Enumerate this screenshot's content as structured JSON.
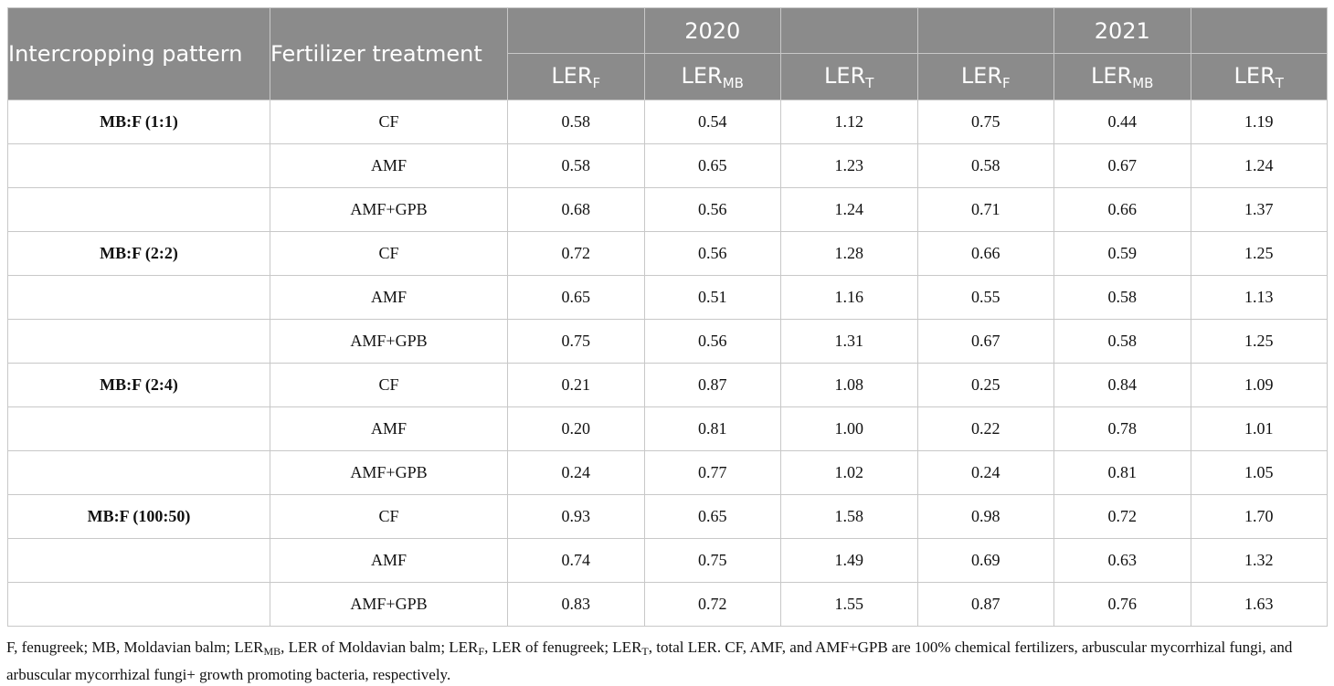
{
  "table": {
    "header": {
      "pattern": "Intercropping pattern",
      "treatment": "Fertilizer treatment",
      "year1": "2020",
      "year2": "2021",
      "ler_base": "LER",
      "sub_f": "F",
      "sub_mb": "MB",
      "sub_t": "T"
    },
    "rows": [
      {
        "pattern": "MB:F (1:1)",
        "treatment": "CF",
        "v": [
          "0.58",
          "0.54",
          "1.12",
          "0.75",
          "0.44",
          "1.19"
        ]
      },
      {
        "pattern": "",
        "treatment": "AMF",
        "v": [
          "0.58",
          "0.65",
          "1.23",
          "0.58",
          "0.67",
          "1.24"
        ]
      },
      {
        "pattern": "",
        "treatment": "AMF+GPB",
        "v": [
          "0.68",
          "0.56",
          "1.24",
          "0.71",
          "0.66",
          "1.37"
        ]
      },
      {
        "pattern": "MB:F (2:2)",
        "treatment": "CF",
        "v": [
          "0.72",
          "0.56",
          "1.28",
          "0.66",
          "0.59",
          "1.25"
        ]
      },
      {
        "pattern": "",
        "treatment": "AMF",
        "v": [
          "0.65",
          "0.51",
          "1.16",
          "0.55",
          "0.58",
          "1.13"
        ]
      },
      {
        "pattern": "",
        "treatment": "AMF+GPB",
        "v": [
          "0.75",
          "0.56",
          "1.31",
          "0.67",
          "0.58",
          "1.25"
        ]
      },
      {
        "pattern": "MB:F (2:4)",
        "treatment": "CF",
        "v": [
          "0.21",
          "0.87",
          "1.08",
          "0.25",
          "0.84",
          "1.09"
        ]
      },
      {
        "pattern": "",
        "treatment": "AMF",
        "v": [
          "0.20",
          "0.81",
          "1.00",
          "0.22",
          "0.78",
          "1.01"
        ]
      },
      {
        "pattern": "",
        "treatment": "AMF+GPB",
        "v": [
          "0.24",
          "0.77",
          "1.02",
          "0.24",
          "0.81",
          "1.05"
        ]
      },
      {
        "pattern": "MB:F (100:50)",
        "treatment": "CF",
        "v": [
          "0.93",
          "0.65",
          "1.58",
          "0.98",
          "0.72",
          "1.70"
        ]
      },
      {
        "pattern": "",
        "treatment": "AMF",
        "v": [
          "0.74",
          "0.75",
          "1.49",
          "0.69",
          "0.63",
          "1.32"
        ]
      },
      {
        "pattern": "",
        "treatment": "AMF+GPB",
        "v": [
          "0.83",
          "0.72",
          "1.55",
          "0.87",
          "0.76",
          "1.63"
        ]
      }
    ]
  },
  "footnote": {
    "t1": "F, fenugreek; MB, Moldavian balm; LER",
    "s1": "MB",
    "t2": ", LER of Moldavian balm; LER",
    "s2": "F",
    "t3": ", LER of fenugreek; LER",
    "s3": "T",
    "t4": ", total LER. CF, AMF, and AMF+GPB are 100% chemical fertilizers, arbuscular mycorrhizal fungi, and arbuscular mycorrhizal fungi+ growth promoting bacteria, respectively."
  }
}
